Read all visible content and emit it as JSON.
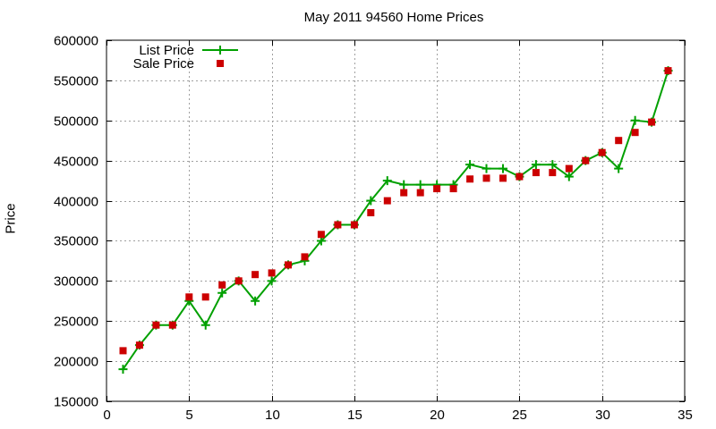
{
  "chart_data": {
    "type": "line",
    "title": "May 2011 94560 Home Prices",
    "xlabel": "",
    "ylabel": "Price",
    "xlim": [
      0,
      35
    ],
    "ylim": [
      150000,
      600000
    ],
    "xticks": [
      0,
      5,
      10,
      15,
      20,
      25,
      30,
      35
    ],
    "yticks": [
      150000,
      200000,
      250000,
      300000,
      350000,
      400000,
      450000,
      500000,
      550000,
      600000
    ],
    "grid": true,
    "legend_position": "top-left",
    "x": [
      1,
      2,
      3,
      4,
      5,
      6,
      7,
      8,
      9,
      10,
      11,
      12,
      13,
      14,
      15,
      16,
      17,
      18,
      19,
      20,
      21,
      22,
      23,
      24,
      25,
      26,
      27,
      28,
      29,
      30,
      31,
      32,
      33,
      34
    ],
    "series": [
      {
        "name": "List Price",
        "style": "linespoints",
        "marker": "plus",
        "color": "#00a000",
        "values": [
          190000,
          220000,
          245000,
          245000,
          275000,
          245000,
          285000,
          300000,
          275000,
          300000,
          320000,
          325000,
          350000,
          370000,
          370000,
          400000,
          425000,
          420000,
          420000,
          420000,
          420000,
          445000,
          440000,
          440000,
          430000,
          445000,
          445000,
          430000,
          450000,
          460000,
          440000,
          500000,
          498000,
          562000
        ]
      },
      {
        "name": "Sale Price",
        "style": "points",
        "marker": "square",
        "color": "#cc0000",
        "values": [
          213000,
          220000,
          245000,
          245000,
          280000,
          280000,
          295000,
          300000,
          308000,
          310000,
          320000,
          330000,
          358000,
          370000,
          370000,
          385000,
          400000,
          410000,
          410000,
          415000,
          415000,
          427000,
          428000,
          428000,
          430000,
          435000,
          435000,
          440000,
          450000,
          460000,
          475000,
          485000,
          498000,
          562000
        ]
      }
    ]
  },
  "colors": {
    "list": "#00a000",
    "sale": "#cc0000",
    "grid": "#a0a0a0",
    "axis": "#000000"
  }
}
